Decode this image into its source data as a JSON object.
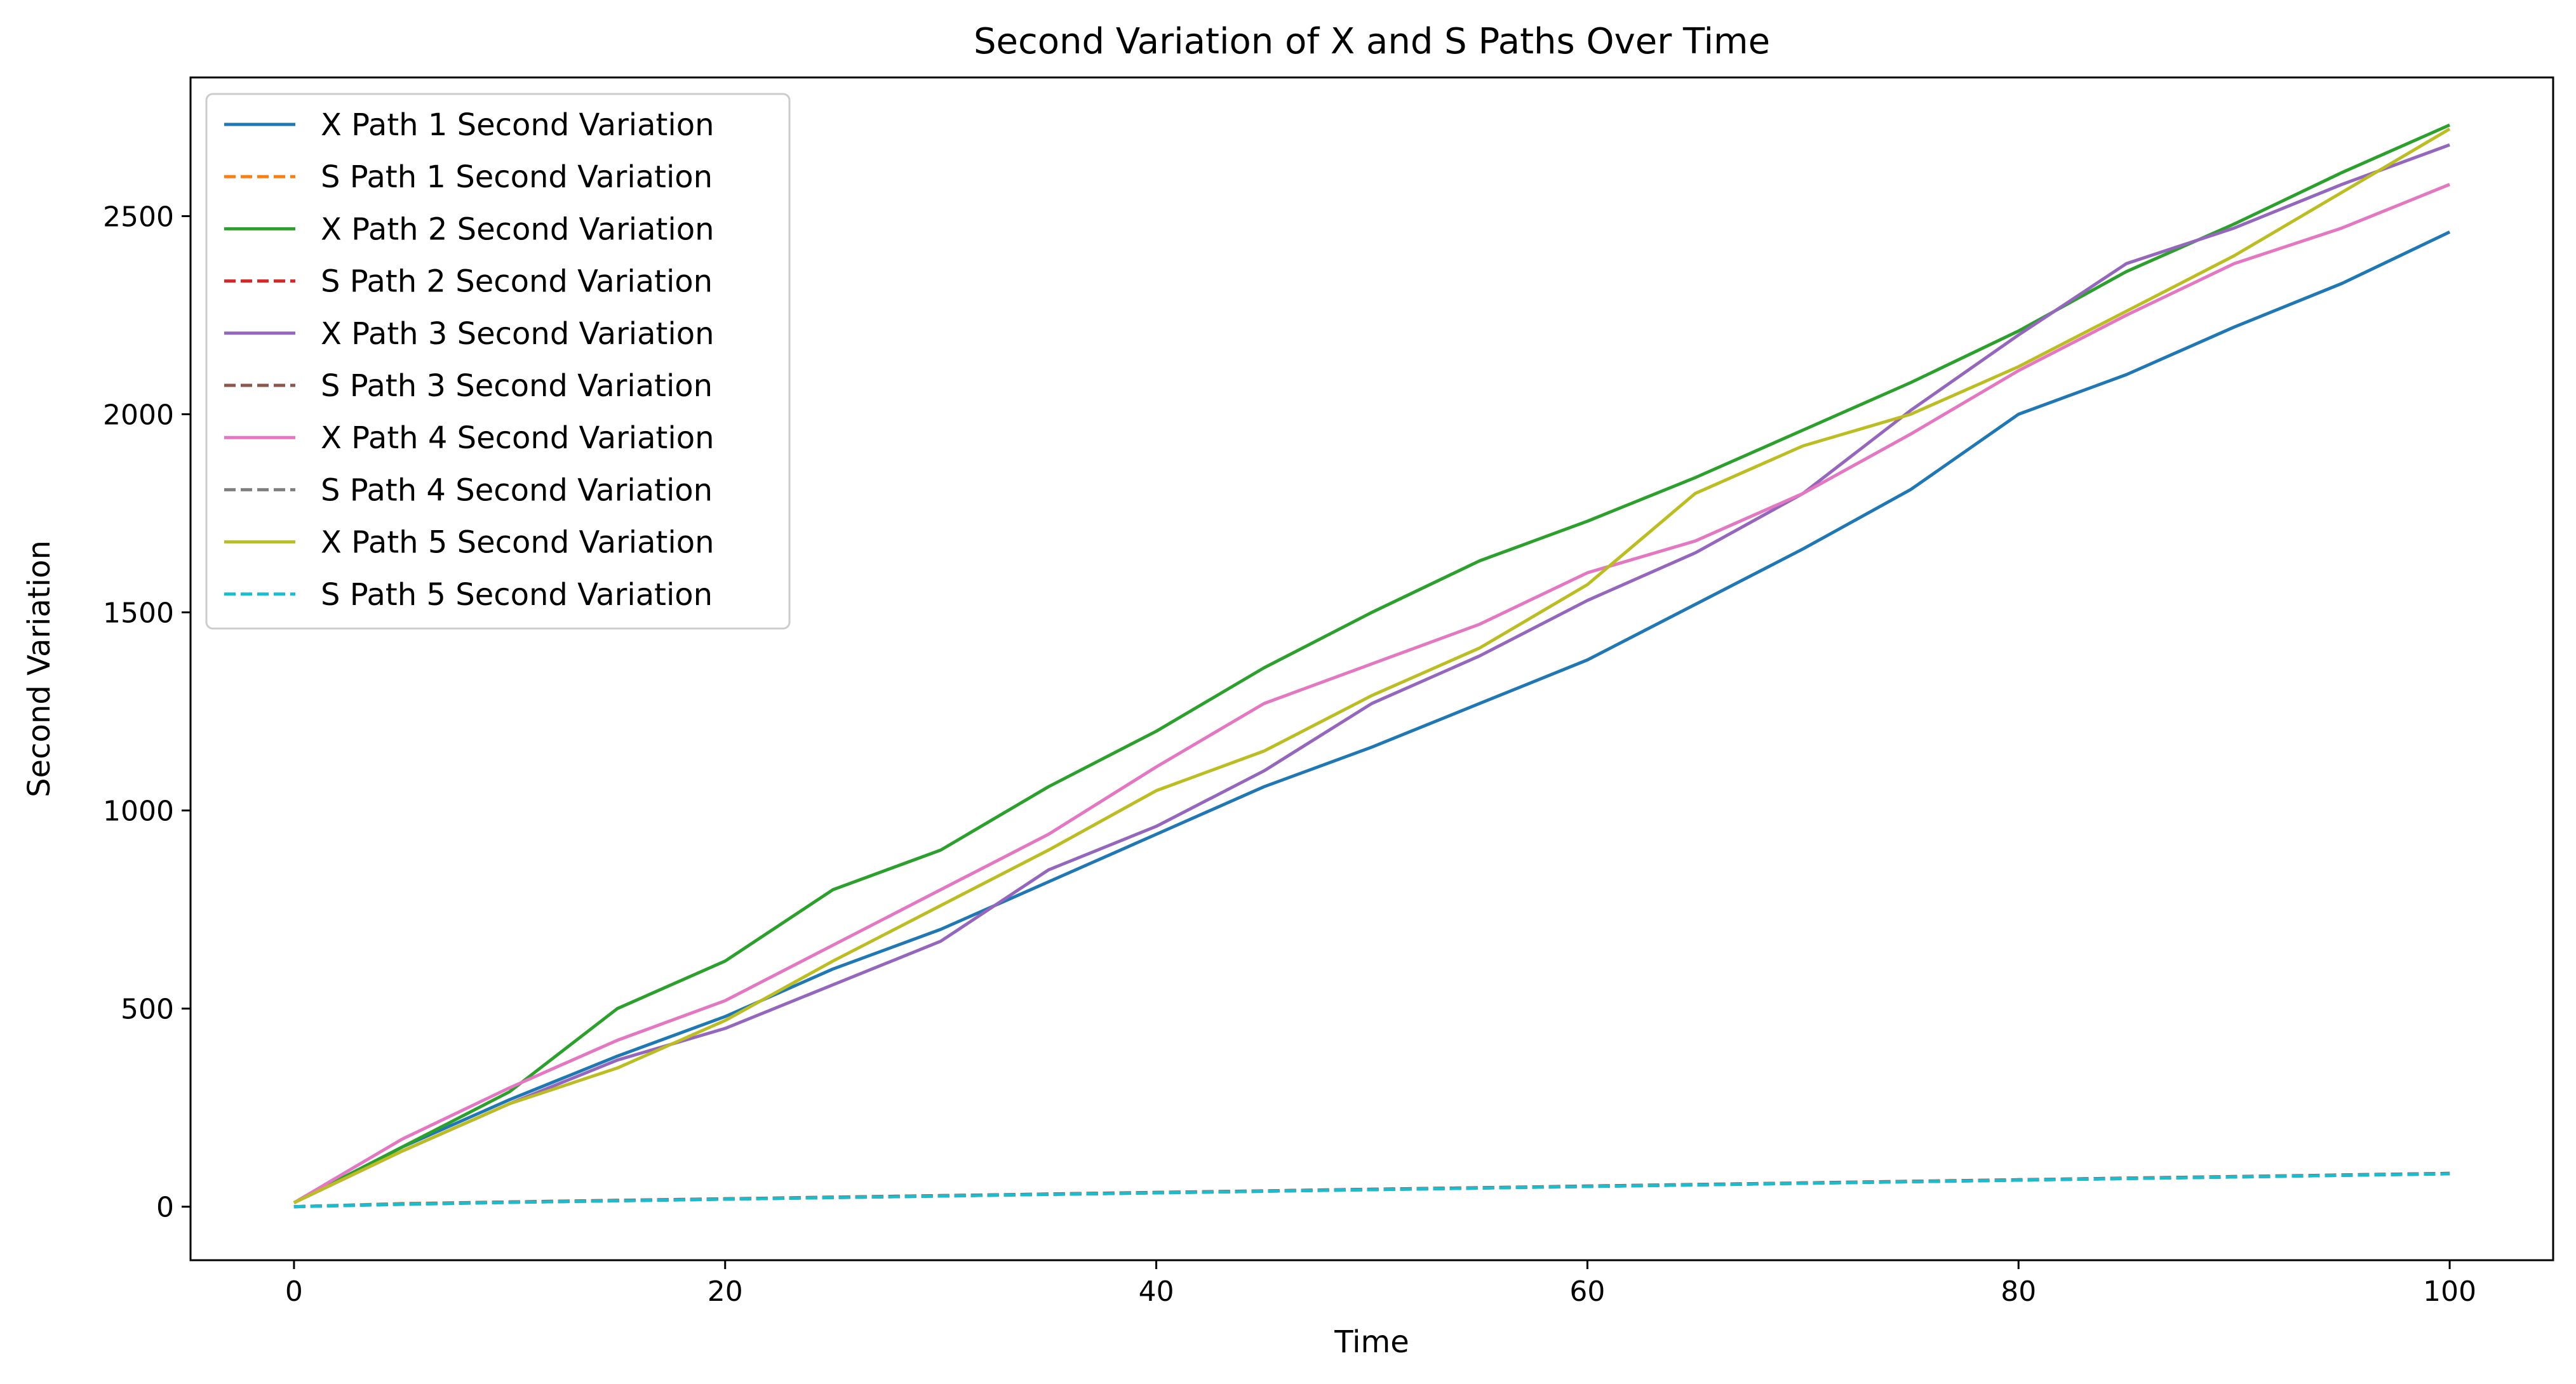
{
  "chart_data": {
    "type": "line",
    "title": "Second Variation of X and S Paths Over Time",
    "xlabel": "Time",
    "ylabel": "Second Variation",
    "xlim": [
      -4.8,
      104.8
    ],
    "ylim": [
      -135,
      2850
    ],
    "xticks": [
      0,
      20,
      40,
      60,
      80,
      100
    ],
    "yticks": [
      0,
      500,
      1000,
      1500,
      2000,
      2500
    ],
    "grid": false,
    "legend_position": "top-left",
    "x": [
      0,
      5,
      10,
      15,
      20,
      25,
      30,
      35,
      40,
      45,
      50,
      55,
      60,
      65,
      70,
      75,
      80,
      85,
      90,
      95,
      100
    ],
    "series": [
      {
        "name": "X Path 1 Second Variation",
        "color": "#1f77b4",
        "style": "solid",
        "values": [
          10,
          150,
          270,
          380,
          480,
          600,
          700,
          820,
          940,
          1060,
          1160,
          1270,
          1380,
          1520,
          1660,
          1810,
          2000,
          2100,
          2220,
          2330,
          2460
        ]
      },
      {
        "name": "S Path 1 Second Variation",
        "color": "#ff7f0e",
        "style": "dashed",
        "values": [
          0,
          8,
          12,
          16,
          20,
          24,
          28,
          32,
          36,
          40,
          44,
          48,
          52,
          56,
          60,
          64,
          68,
          72,
          76,
          80,
          84
        ]
      },
      {
        "name": "X Path 2 Second Variation",
        "color": "#2ca02c",
        "style": "solid",
        "values": [
          10,
          150,
          290,
          500,
          620,
          800,
          900,
          1060,
          1200,
          1360,
          1500,
          1630,
          1730,
          1840,
          1960,
          2080,
          2210,
          2360,
          2480,
          2610,
          2730
        ]
      },
      {
        "name": "S Path 2 Second Variation",
        "color": "#d62728",
        "style": "dashed",
        "values": [
          0,
          7,
          12,
          16,
          20,
          24,
          28,
          32,
          36,
          40,
          44,
          48,
          52,
          56,
          60,
          64,
          68,
          72,
          76,
          80,
          84
        ]
      },
      {
        "name": "X Path 3 Second Variation",
        "color": "#9467bd",
        "style": "solid",
        "values": [
          10,
          140,
          260,
          370,
          450,
          560,
          670,
          850,
          960,
          1100,
          1270,
          1390,
          1530,
          1650,
          1800,
          2010,
          2200,
          2380,
          2470,
          2580,
          2680
        ]
      },
      {
        "name": "S Path 3 Second Variation",
        "color": "#8c564b",
        "style": "dashed",
        "values": [
          0,
          6,
          11,
          15,
          19,
          23,
          27,
          31,
          35,
          39,
          43,
          47,
          51,
          55,
          59,
          63,
          67,
          71,
          75,
          79,
          83
        ]
      },
      {
        "name": "X Path 4 Second Variation",
        "color": "#e377c2",
        "style": "solid",
        "values": [
          10,
          170,
          300,
          420,
          520,
          660,
          800,
          940,
          1110,
          1270,
          1370,
          1470,
          1600,
          1680,
          1800,
          1950,
          2110,
          2250,
          2380,
          2470,
          2580
        ]
      },
      {
        "name": "S Path 4 Second Variation",
        "color": "#7f7f7f",
        "style": "dashed",
        "values": [
          0,
          7,
          11,
          15,
          19,
          23,
          27,
          31,
          35,
          39,
          43,
          47,
          51,
          55,
          59,
          63,
          67,
          71,
          75,
          79,
          83
        ]
      },
      {
        "name": "X Path 5 Second Variation",
        "color": "#bcbd22",
        "style": "solid",
        "values": [
          10,
          140,
          260,
          350,
          470,
          620,
          760,
          900,
          1050,
          1150,
          1290,
          1410,
          1570,
          1800,
          1920,
          2000,
          2120,
          2260,
          2400,
          2560,
          2720
        ]
      },
      {
        "name": "S Path 5 Second Variation",
        "color": "#17becf",
        "style": "dashed",
        "values": [
          0,
          6,
          11,
          15,
          19,
          23,
          27,
          31,
          35,
          39,
          43,
          47,
          51,
          55,
          59,
          63,
          67,
          71,
          75,
          79,
          83
        ]
      }
    ]
  }
}
